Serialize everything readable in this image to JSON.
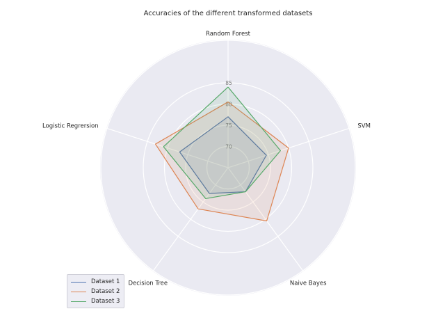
{
  "chart_data": {
    "type": "radar",
    "title": "Accuracies of the different transformed datasets",
    "categories": [
      "Random Forest",
      "SVM",
      "Naive Bayes",
      "Decision Tree",
      "Logistic Regrersion"
    ],
    "r_range": [
      65,
      85
    ],
    "r_ticks": [
      70,
      75,
      80,
      85
    ],
    "r_tick_labels": [
      "70",
      "75",
      "80",
      "85"
    ],
    "grid": true,
    "legend_position": "bottom-left",
    "series": [
      {
        "name": "Dataset 1",
        "color": "#4c72b0",
        "values": [
          77,
          74.5,
          72,
          72.5,
          77
        ]
      },
      {
        "name": "Dataset 2",
        "color": "#dd8452",
        "values": [
          80.5,
          80,
          80.5,
          77,
          83
        ]
      },
      {
        "name": "Dataset 3",
        "color": "#55a868",
        "values": [
          84,
          78,
          72,
          74,
          81
        ]
      }
    ]
  }
}
